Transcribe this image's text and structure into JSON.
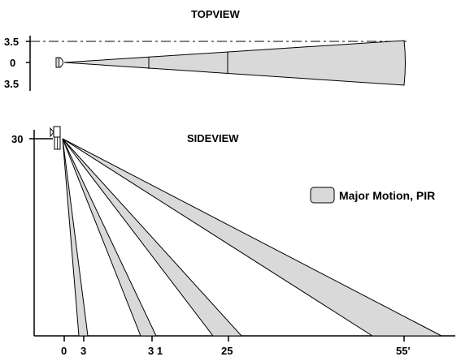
{
  "top_view": {
    "title": "TOPVIEW",
    "y_ticks": [
      "3.5",
      "0",
      "3.5"
    ]
  },
  "side_view": {
    "title": "SIDEVIEW",
    "y_tick": "30",
    "x_ticks": [
      "0",
      "3",
      "3 1",
      "25",
      "55'"
    ]
  },
  "legend": {
    "label": "Major Motion, PIR",
    "swatch_color": "#d9d9d9"
  },
  "colors": {
    "beam_fill": "#d9d9d9",
    "line": "#000000"
  }
}
